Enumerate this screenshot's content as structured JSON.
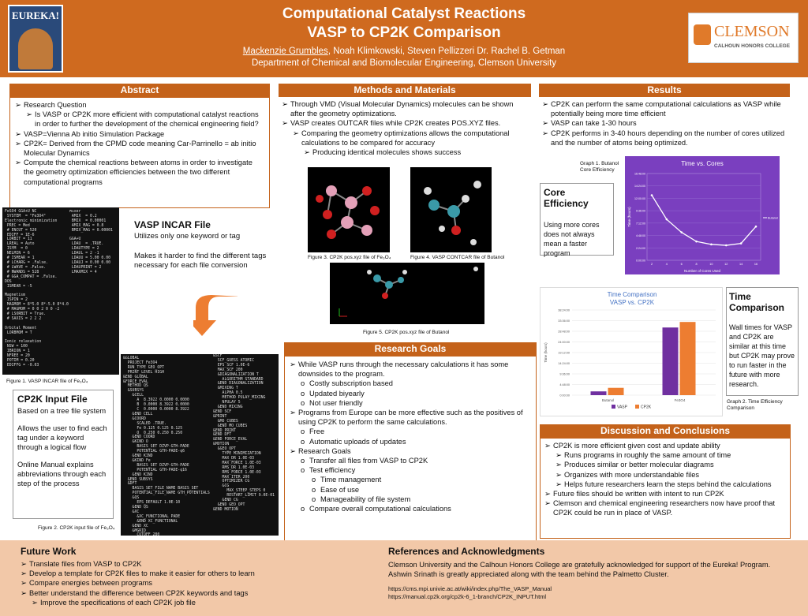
{
  "header": {
    "title_line1": "Computational Catalyst Reactions",
    "title_line2": "VASP to CP2K Comparison",
    "authors_underlined": "Mackenzie Grumbles",
    "authors_rest": ", Noah Klimkowski, Steven Pellizzeri Dr. Rachel B. Getman",
    "department": "Department of Chemical and Biomolecular Engineering, Clemson University",
    "logo_left_text": "EUREKA!",
    "logo_right_text": "CLEMSON",
    "logo_right_sub": "CALHOUN HONORS COLLEGE"
  },
  "abstract": {
    "heading": "Abstract",
    "items": [
      {
        "level": 1,
        "marker": "➢",
        "text": "Research Question"
      },
      {
        "level": 2,
        "marker": "➢",
        "text": "Is VASP or CP2K more efficient with computational catalyst reactions in order to further the development of the chemical engineering field?"
      },
      {
        "level": 1,
        "marker": "➢",
        "text": "VASP=Vienna Ab initio Simulation Package"
      },
      {
        "level": 1,
        "marker": "➢",
        "text": "CP2K= Derived from the CPMD code meaning Car-Parrinello = ab initio Molecular Dynamics"
      },
      {
        "level": 1,
        "marker": "➢",
        "text": "Compute the chemical reactions between atoms in order to investigate the geometry optimization efficiencies between the two different computational programs"
      }
    ]
  },
  "methods": {
    "heading": "Methods and Materials",
    "items": [
      {
        "level": 1,
        "marker": "➢",
        "text": "Through VMD (Visual Molecular Dynamics) molecules can be shown after the geometry optimizations."
      },
      {
        "level": 1,
        "marker": "➢",
        "text": "VASP creates OUTCAR files while CP2K creates POS.XYZ files."
      },
      {
        "level": 2,
        "marker": "➢",
        "text": "Comparing the geometry optimizations allows the computational calculations to be compared for accuracy"
      },
      {
        "level": 3,
        "marker": "➢",
        "text": "Producing identical molecules shows success"
      }
    ],
    "fig3": "Figure 3. CP2K pos.xyz file of Fe₃O₄",
    "fig4": "Figure 4. VASP CONTCAR file of Butanol",
    "fig5": "Figure 5. CP2K pos.xyz file of Butanol"
  },
  "results": {
    "heading": "Results",
    "items": [
      {
        "level": 1,
        "marker": "➢",
        "text": "CP2K can perform the same computational calculations as VASP while potentially being more time efficient"
      },
      {
        "level": 1,
        "marker": "➢",
        "text": "VASP can take 1-30 hours"
      },
      {
        "level": 1,
        "marker": "➢",
        "text": "CP2K performs in 3-40 hours depending on the number of cores utilized and the number of atoms being optimized."
      }
    ],
    "graph1_caption": "Graph 1. Butanol Core Efficiency",
    "graph2_caption": "Graph 2. Time Efficiency Comparison"
  },
  "core_efficiency": {
    "title": "Core Efficiency",
    "text": "Using more cores does not always mean a faster program"
  },
  "time_comparison": {
    "title": "Time Comparison",
    "text": "Wall times for VASP and CP2K are similar at this time but CP2K may prove to run faster in the future with more research."
  },
  "vasp_incar": {
    "title": "VASP INCAR File",
    "line1": "Utilizes only one keyword or tag",
    "line2": "Makes it harder to find the different tags necessary for each file conversion",
    "fig1": "Figure 1. VASP INCAR file of Fe₃O₄"
  },
  "cp2k_input": {
    "title": "CP2K Input File",
    "line1": "Based on a tree file system",
    "line2": "Allows the user to find each tag under a keyword through a logical flow",
    "line3": "Online Manual explains abbreviations through each step of the process",
    "fig2": "Figure 2. CP2K input file of Fe₃O₄"
  },
  "research_goals": {
    "heading": "Research Goals",
    "items": [
      {
        "level": 1,
        "marker": "➢",
        "text": "While VASP runs through the necessary calculations it has some downsides to the program."
      },
      {
        "level": 2,
        "marker": "o",
        "text": "Costly subscription based"
      },
      {
        "level": 2,
        "marker": "o",
        "text": "Updated biyearly"
      },
      {
        "level": 2,
        "marker": "o",
        "text": "Not user friendly"
      },
      {
        "level": 1,
        "marker": "➢",
        "text": "Programs from Europe can be more effective such as the positives of using CP2K to perform the same calculations."
      },
      {
        "level": 2,
        "marker": "o",
        "text": "Free"
      },
      {
        "level": 2,
        "marker": "o",
        "text": "Automatic uploads of updates"
      },
      {
        "level": 1,
        "marker": "➢",
        "text": "Research Goals"
      },
      {
        "level": 2,
        "marker": "o",
        "text": "Transfer all files from VASP to CP2K"
      },
      {
        "level": 2,
        "marker": "o",
        "text": "Test efficiency"
      },
      {
        "level": 3,
        "marker": "o",
        "text": "Time management"
      },
      {
        "level": 3,
        "marker": "o",
        "text": "Ease of use"
      },
      {
        "level": 3,
        "marker": "o",
        "text": "Manageability of file system"
      },
      {
        "level": 2,
        "marker": "o",
        "text": "Compare overall computational calculations"
      }
    ]
  },
  "discussion": {
    "heading": "Discussion and Conclusions",
    "items": [
      {
        "level": 1,
        "marker": "➢",
        "text": "CP2K is more efficient given cost and update ability"
      },
      {
        "level": 2,
        "marker": "➢",
        "text": "Runs programs in roughly the same amount of time"
      },
      {
        "level": 2,
        "marker": "➢",
        "text": "Produces similar or better molecular diagrams"
      },
      {
        "level": 2,
        "marker": "➢",
        "text": "Organizes with more understandable files"
      },
      {
        "level": 2,
        "marker": "➢",
        "text": "Helps future researchers learn the steps behind the calculations"
      },
      {
        "level": 1,
        "marker": "➢",
        "text": "Future files should be written with intent to run CP2K"
      },
      {
        "level": 1,
        "marker": "➢",
        "text": "Clemson and chemical engineering researchers now have proof that CP2K could be run in place of VASP."
      }
    ]
  },
  "future_work": {
    "heading": "Future Work",
    "items": [
      {
        "level": 1,
        "marker": "➢",
        "text": "Translate files from VASP to CP2K"
      },
      {
        "level": 1,
        "marker": "➢",
        "text": "Develop a template for CP2K files to make it easier for others to learn"
      },
      {
        "level": 1,
        "marker": "➢",
        "text": "Compare energies between programs"
      },
      {
        "level": 1,
        "marker": "➢",
        "text": "Better understand the difference between CP2K keywords and tags"
      },
      {
        "level": 2,
        "marker": "➢",
        "text": "Improve the specifications of each CP2K job file"
      }
    ]
  },
  "references": {
    "heading": "References and Acknowledgments",
    "ack": "Clemson University and the Calhoun Honors College are gratefully acknowledged for support of the Eureka! Program. Ashwin Srinath is greatly appreciated along with the team behind the Palmetto Cluster.",
    "ref1": "https://cms.mpi.univie.ac.at/wiki/index.php/The_VASP_Manual",
    "ref2": "https://manual.cp2k.org/cp2k-6_1-branch/CP2K_INPUT.html"
  },
  "chart_data": [
    {
      "type": "line",
      "title": "Time vs. Cores",
      "xlabel": "Number of Cores Used",
      "ylabel": "Time (hours)",
      "x": [
        2,
        4,
        6,
        8,
        10,
        12,
        14,
        16
      ],
      "series": [
        {
          "name": "Butanol",
          "values": [
            13.5,
            8.5,
            5.8,
            3.9,
            3.3,
            3.1,
            3.5,
            7.0
          ]
        }
      ],
      "ylim": [
        0,
        18
      ],
      "yticks": [
        "0:00:00",
        "2:24:00",
        "4:48:00",
        "7:12:00",
        "9:36:00",
        "12:00:00",
        "14:24:00",
        "16:48:00"
      ],
      "legend": "right",
      "color": "#ffffff",
      "background": "#7a3fbf"
    },
    {
      "type": "bar",
      "title": "Time Comparison VASP vs. CP2K",
      "ylabel": "Time (hours)",
      "categories": [
        "Butanol",
        "Fe3O4"
      ],
      "series": [
        {
          "name": "VASP",
          "values": [
            1.7,
            30.5
          ],
          "color": "#7030a0"
        },
        {
          "name": "CP2K",
          "values": [
            3.3,
            33.0
          ],
          "color": "#ed7d31"
        }
      ],
      "yticks": [
        "0:00:00",
        "4:48:00",
        "9:36:00",
        "14:24:00",
        "19:12:00",
        "24:00:00",
        "28:48:00",
        "33:36:00",
        "38:24:00"
      ],
      "ylim": [
        0,
        38.4
      ],
      "legend": "bottom"
    }
  ]
}
